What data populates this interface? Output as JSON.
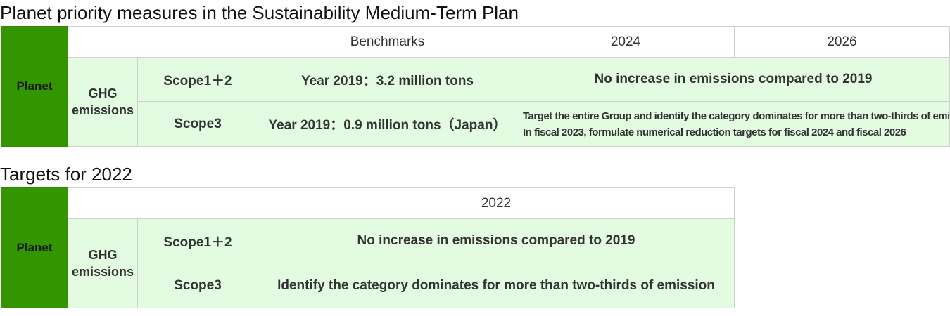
{
  "plan": {
    "title": "Planet priority measures in the Sustainability Medium-Term Plan",
    "headers": {
      "benchmarks": "Benchmarks",
      "y2024": "2024",
      "y2026": "2026"
    },
    "planet_label": "Planet",
    "ghg_label_line1": "GHG",
    "ghg_label_line2": "emissions",
    "rows": [
      {
        "scope": "Scope1＋2",
        "benchmark": "Year 2019：3.2 million tons",
        "target": "No increase in emissions compared to 2019"
      },
      {
        "scope": "Scope3",
        "benchmark": "Year 2019：0.9 million tons（Japan）",
        "target_line1": "Target the entire Group and identify the category dominates for more than two-thirds of emission",
        "target_line2": "In fiscal 2023, formulate numerical reduction targets for fiscal 2024 and fiscal 2026"
      }
    ]
  },
  "targets": {
    "title": "Targets for 2022",
    "headers": {
      "y2022": "2022"
    },
    "planet_label": "Planet",
    "ghg_label_line1": "GHG",
    "ghg_label_line2": "emissions",
    "rows": [
      {
        "scope": "Scope1＋2",
        "target": "No increase in emissions compared to 2019"
      },
      {
        "scope": "Scope3",
        "target": "Identify the category dominates for more than two-thirds of emission"
      }
    ]
  },
  "colors": {
    "planet_cell": "#339600",
    "light_green": "#e3fbe0",
    "border": "#cfcfcf"
  }
}
